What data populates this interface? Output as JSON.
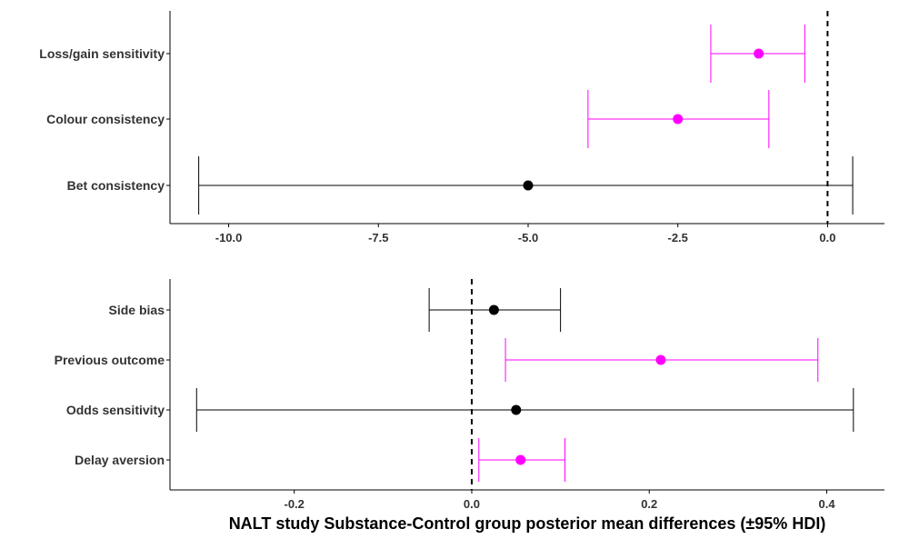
{
  "chart_data": [
    {
      "type": "errorbar",
      "title": "",
      "ylabel": "",
      "xlabel": "",
      "xlim": [
        -10.98,
        0.95
      ],
      "x_ticks": [
        -10.0,
        -7.5,
        -5.0,
        -2.5,
        0.0
      ],
      "x_tick_labels": [
        "-10.0",
        "-7.5",
        "-5.0",
        "-2.5",
        "0.0"
      ],
      "reference_line": 0.0,
      "points": [
        {
          "label": "Loss/gain sensitivity",
          "mean": -1.15,
          "lower": -1.95,
          "upper": -0.38,
          "color": "#ff00ff"
        },
        {
          "label": "Colour consistency",
          "mean": -2.5,
          "lower": -4.0,
          "upper": -0.98,
          "color": "#ff00ff"
        },
        {
          "label": "Bet consistency",
          "mean": -5.0,
          "lower": -10.5,
          "upper": 0.42,
          "color": "#000000"
        }
      ]
    },
    {
      "type": "errorbar",
      "title": "",
      "ylabel": "",
      "xlabel": "NALT study Substance-Control group posterior mean differences (±95% HDI)",
      "xlim": [
        -0.34,
        0.465
      ],
      "x_ticks": [
        -0.2,
        0.0,
        0.2,
        0.4
      ],
      "x_tick_labels": [
        "-0.2",
        "0.0",
        "0.2",
        "0.4"
      ],
      "reference_line": 0.0,
      "points": [
        {
          "label": "Side bias",
          "mean": 0.025,
          "lower": -0.048,
          "upper": 0.1,
          "color": "#000000"
        },
        {
          "label": "Previous outcome",
          "mean": 0.213,
          "lower": 0.038,
          "upper": 0.39,
          "color": "#ff00ff"
        },
        {
          "label": "Odds sensitivity",
          "mean": 0.05,
          "lower": -0.31,
          "upper": 0.43,
          "color": "#000000"
        },
        {
          "label": "Delay aversion",
          "mean": 0.055,
          "lower": 0.008,
          "upper": 0.105,
          "color": "#ff00ff"
        }
      ]
    }
  ]
}
